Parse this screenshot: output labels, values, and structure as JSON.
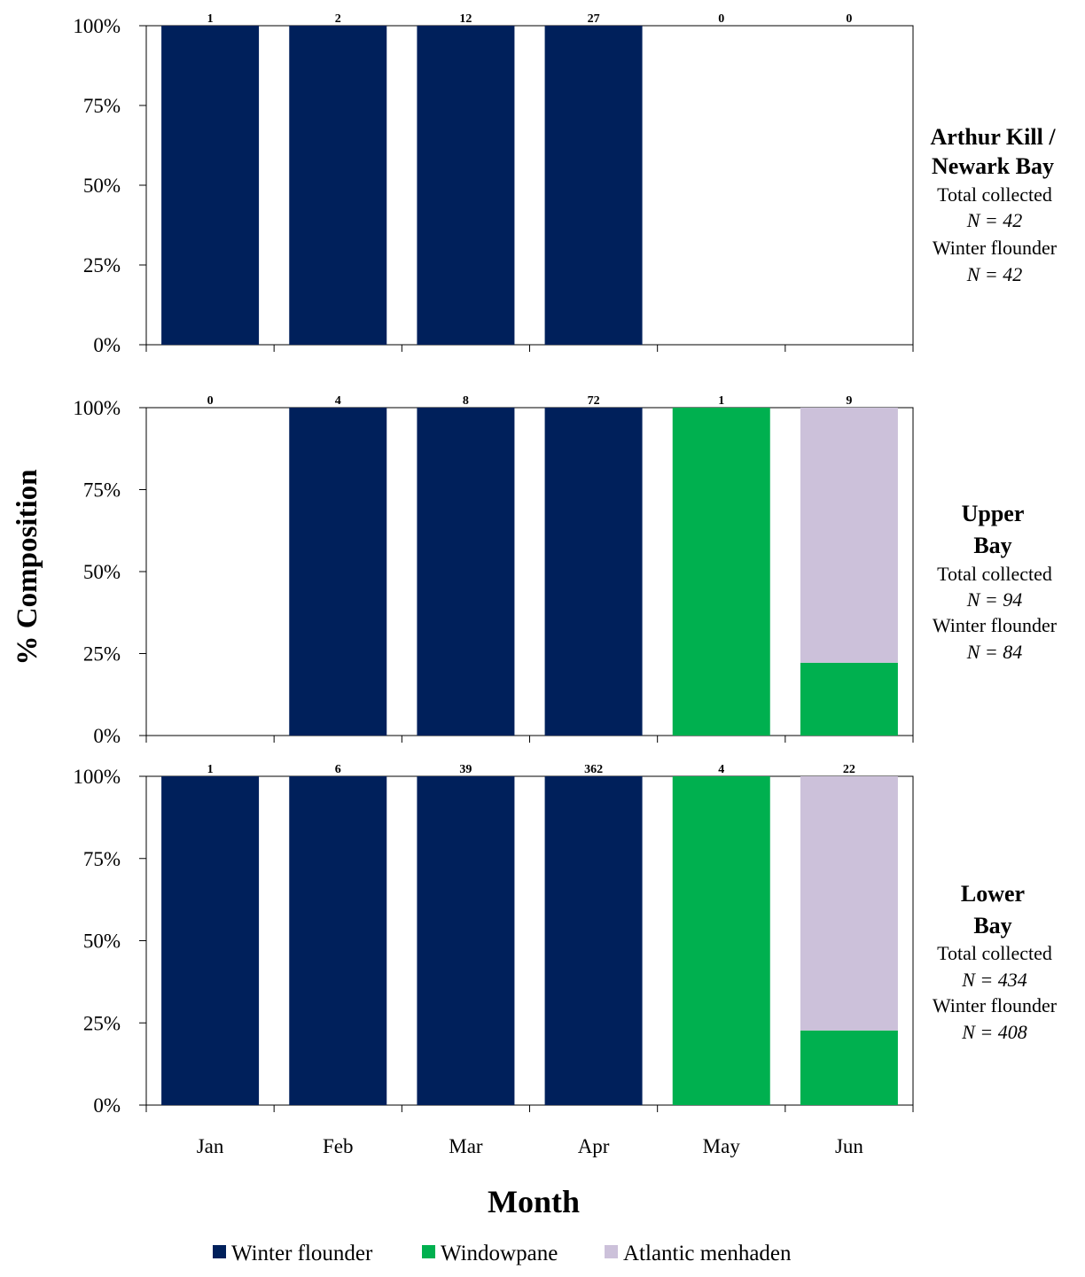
{
  "chart_data": {
    "type": "bar",
    "stacked": true,
    "normalized": true,
    "xlabel": "Month",
    "ylabel": "% Composition",
    "categories": [
      "Jan",
      "Feb",
      "Mar",
      "Apr",
      "May",
      "Jun"
    ],
    "y_ticks": [
      "0%",
      "25%",
      "50%",
      "75%",
      "100%"
    ],
    "ylim": [
      0,
      100
    ],
    "legend": {
      "placement": "bottom",
      "entries": [
        {
          "name": "Winter flounder",
          "color": "#00205b"
        },
        {
          "name": "Windowpane",
          "color": "#00b04f"
        },
        {
          "name": "Atlantic menhaden",
          "color": "#ccc1da"
        }
      ]
    },
    "panels": [
      {
        "title_lines": [
          "Arthur Kill /",
          "Newark Bay"
        ],
        "info": [
          {
            "text": "Total collected",
            "italic": false
          },
          {
            "text": "N = 42",
            "italic": true
          },
          {
            "text": "Winter flounder",
            "italic": false
          },
          {
            "text": "N = 42",
            "italic": true
          }
        ],
        "counts": [
          "1",
          "2",
          "12",
          "27",
          "0",
          "0"
        ],
        "series": [
          {
            "name": "Winter flounder",
            "values": [
              100,
              100,
              100,
              100,
              0,
              0
            ]
          },
          {
            "name": "Windowpane",
            "values": [
              0,
              0,
              0,
              0,
              0,
              0
            ]
          },
          {
            "name": "Atlantic menhaden",
            "values": [
              0,
              0,
              0,
              0,
              0,
              0
            ]
          }
        ]
      },
      {
        "title_lines": [
          "Upper",
          "Bay"
        ],
        "info": [
          {
            "text": "Total collected",
            "italic": false
          },
          {
            "text": "N = 94",
            "italic": true
          },
          {
            "text": "Winter flounder",
            "italic": false
          },
          {
            "text": "N = 84",
            "italic": true
          }
        ],
        "counts": [
          "0",
          "4",
          "8",
          "72",
          "1",
          "9"
        ],
        "series": [
          {
            "name": "Winter flounder",
            "values": [
              0,
              100,
              100,
              100,
              0,
              0
            ]
          },
          {
            "name": "Windowpane",
            "values": [
              0,
              0,
              0,
              0,
              100,
              22.2
            ]
          },
          {
            "name": "Atlantic menhaden",
            "values": [
              0,
              0,
              0,
              0,
              0,
              77.8
            ]
          }
        ]
      },
      {
        "title_lines": [
          "Lower",
          "Bay"
        ],
        "info": [
          {
            "text": "Total collected",
            "italic": false
          },
          {
            "text": "N = 434",
            "italic": true
          },
          {
            "text": "Winter flounder",
            "italic": false
          },
          {
            "text": "N = 408",
            "italic": true
          }
        ],
        "counts": [
          "1",
          "6",
          "39",
          "362",
          "4",
          "22"
        ],
        "series": [
          {
            "name": "Winter flounder",
            "values": [
              100,
              100,
              100,
              100,
              0,
              0
            ]
          },
          {
            "name": "Windowpane",
            "values": [
              0,
              0,
              0,
              0,
              100,
              22.7
            ]
          },
          {
            "name": "Atlantic menhaden",
            "values": [
              0,
              0,
              0,
              0,
              0,
              77.3
            ]
          }
        ]
      }
    ]
  }
}
